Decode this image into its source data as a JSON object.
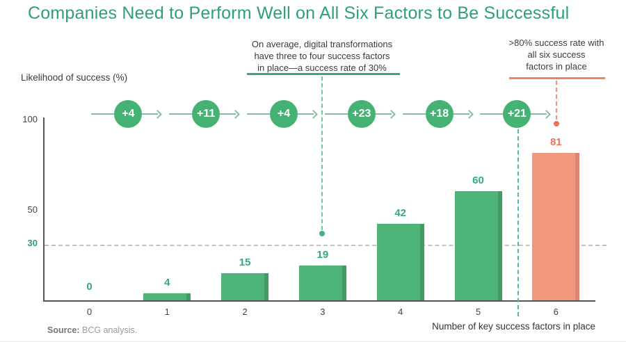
{
  "title": "Companies Need to Perform Well on All Six Factors to Be Successful",
  "annotations": {
    "avg": {
      "lines": [
        "On average, digital transformations",
        "have three to four success factors",
        "in place—a success rate of 30%"
      ]
    },
    "six": {
      "lines": [
        ">80% success rate with",
        "all six success",
        "factors in place"
      ]
    }
  },
  "axis": {
    "y_title": "Likelihood of success (%)",
    "x_title": "Number of key success factors in place",
    "y_tick_100": "100",
    "y_tick_50": "50",
    "y_ref_30": "30"
  },
  "source": {
    "label": "Source:",
    "text": " BCG analysis."
  },
  "chart_data": {
    "type": "bar",
    "title": "Companies Need to Perform Well on All Six Factors to Be Successful",
    "categories": [
      "0",
      "1",
      "2",
      "3",
      "4",
      "5",
      "6"
    ],
    "values": [
      0,
      4,
      15,
      19,
      42,
      60,
      81
    ],
    "deltas": [
      "+4",
      "+11",
      "+4",
      "+23",
      "+18",
      "+21"
    ],
    "xlabel": "Number of key success factors in place",
    "ylabel": "Likelihood of success (%)",
    "ylim": [
      0,
      100
    ],
    "y_ticks_shown": [
      100,
      50,
      30
    ],
    "reference_line": 30,
    "grid": "single dashed reference line at 30",
    "highlight_index": 6,
    "annotations": [
      "On average, digital transformations have three to four success factors in place—a success rate of 30%",
      ">80% success rate with all six success factors in place"
    ],
    "colors": {
      "title_green": "#2f9e7b",
      "bar_green": "#4cb577",
      "bar_green_edge": "#3f9d65",
      "bar_orange": "#f2977c",
      "bar_orange_edge": "#dd8571",
      "label_green": "#35a97c",
      "label_orange": "#ef7257",
      "badge_green": "#45b173",
      "teal_dash": "#4ab8ab",
      "orange_dash": "#f0907a"
    }
  }
}
